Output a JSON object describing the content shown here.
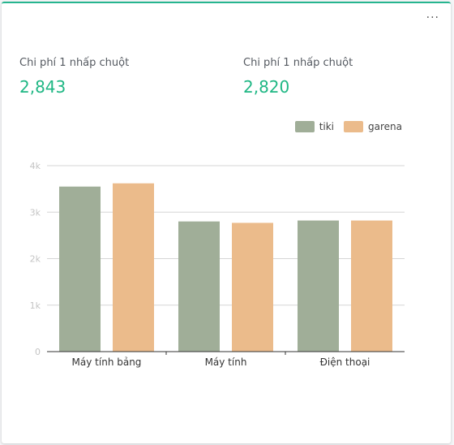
{
  "menu_glyph": "···",
  "metrics": [
    {
      "label": "Chi phí 1 nhấp chuột",
      "value": "2,843"
    },
    {
      "label": "Chi phí 1 nhấp chuột",
      "value": "2,820"
    }
  ],
  "colors": {
    "tiki": "#a0ae98",
    "garena": "#ebbb8b",
    "accent": "#26b58f"
  },
  "chart_data": {
    "type": "bar",
    "categories": [
      "Máy tính bảng",
      "Máy tính",
      "Điện thoại"
    ],
    "series": [
      {
        "name": "tiki",
        "values": [
          3550,
          2800,
          2820
        ]
      },
      {
        "name": "garena",
        "values": [
          3620,
          2770,
          2820
        ]
      }
    ],
    "yticks": [
      "0",
      "1k",
      "2k",
      "3k",
      "4k"
    ],
    "ylim": [
      0,
      4000
    ],
    "grid": true,
    "legend": "top-right"
  }
}
